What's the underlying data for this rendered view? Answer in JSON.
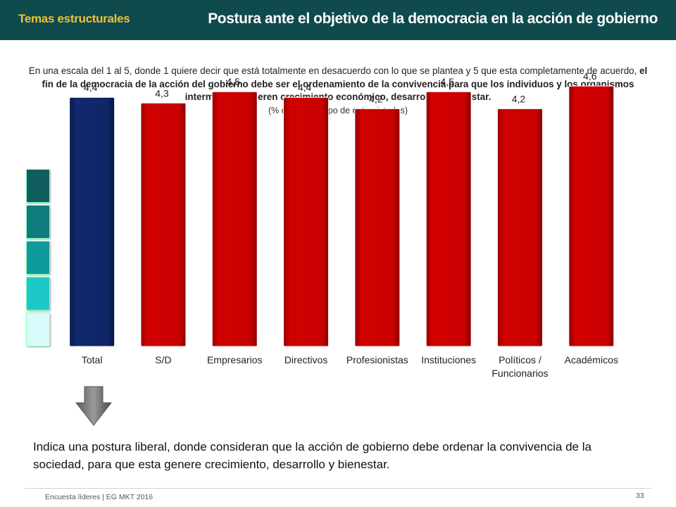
{
  "header": {
    "section": "Temas estructurales",
    "title": "Postura ante el objetivo de la democracia en la acción de gobierno"
  },
  "intro": {
    "part1": "En una escala del 1 al 5, donde 1 quiere decir que está totalmente en desacuerdo con lo que se plantea y 5 que esta completamente de acuerdo, ",
    "part2_bold": "el fin de la democracia de la acción del gobierno debe ser el ordenamiento de la convivencia para que los individuos y los organismos intermedios generen crecimiento económico, desarrollo y bienestar.",
    "note": "(% de cada grupo de entrevistados)"
  },
  "colors": {
    "header_bg": "#0f4a4d",
    "section_text": "#f2c230",
    "bar_total": "#0d2466",
    "bar_group": "#c40000",
    "scale": [
      "#0f5d5f",
      "#0f7b7c",
      "#0f9a9b",
      "#1dc8c9",
      "#d9fbfb"
    ]
  },
  "chart_data": {
    "type": "bar",
    "categories": [
      "Total",
      "S/D",
      "Empresarios",
      "Directivos",
      "Profesionistas",
      "Instituciones",
      "Políticos / Funcionarios",
      "Académicos"
    ],
    "values": [
      4.4,
      4.3,
      4.5,
      4.4,
      4.2,
      4.5,
      4.2,
      4.6
    ],
    "labels": [
      "4,4",
      "4,3",
      "4,5",
      "4,4",
      "4,2",
      "4,5",
      "4,2",
      "4,6"
    ],
    "ylim": [
      0,
      5
    ],
    "grid": false,
    "legend": "none"
  },
  "conclusion": "Indica una postura liberal, donde consideran que la acción de gobierno debe ordenar la convivencia de la sociedad, para que esta genere crecimiento, desarrollo y bienestar.",
  "footer": {
    "source": "Encuesta líderes | EG MKT 2016",
    "page": "33"
  }
}
